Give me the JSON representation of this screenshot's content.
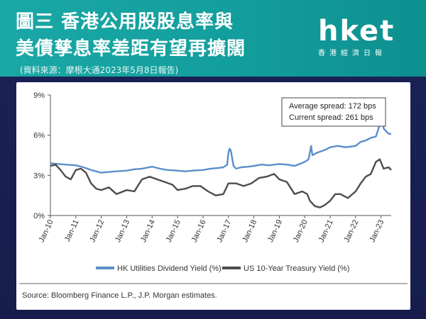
{
  "header": {
    "title_line1": "圖三 香港公用股股息率與",
    "title_line2": "美債孳息率差距有望再擴闊",
    "subtitle": "(資料來源：摩根大通2023年5月8日報告)"
  },
  "logo": {
    "word": "hket",
    "sub": "香港經濟日報"
  },
  "chart_data": {
    "type": "line",
    "xlabel": "",
    "ylabel": "",
    "ylim": [
      0,
      9
    ],
    "y_ticks": [
      0,
      3,
      6,
      9
    ],
    "y_tick_labels": [
      "0%",
      "3%",
      "6%",
      "9%"
    ],
    "x_ticks": [
      "Jan-10",
      "Jan-11",
      "Jan-12",
      "Jan-13",
      "Jan-14",
      "Jan-15",
      "Jan-16",
      "Jan-17",
      "Jan-18",
      "Jan-19",
      "Jan-20",
      "Jan-21",
      "Jan-22",
      "Jan-23"
    ],
    "x_range": [
      2010.0,
      2023.4
    ],
    "grid": false,
    "legend_position": "bottom",
    "annotations": [
      "Average spread: 172 bps",
      "Current spread: 261 bps"
    ],
    "source": "Source: Bloomberg Finance L.P., J.P. Morgan estimates.",
    "colors": {
      "hk": "#5b8fca",
      "us": "#4d4d4d"
    },
    "series": [
      {
        "name": "HK Utilities Dividend Yield (%)",
        "x": [
          2010.0,
          2010.3,
          2010.6,
          2011.0,
          2011.3,
          2011.6,
          2012.0,
          2012.3,
          2012.6,
          2013.0,
          2013.3,
          2013.6,
          2014.0,
          2014.3,
          2014.6,
          2015.0,
          2015.3,
          2015.6,
          2016.0,
          2016.3,
          2016.6,
          2016.8,
          2016.95,
          2017.0,
          2017.05,
          2017.1,
          2017.2,
          2017.3,
          2017.5,
          2017.8,
          2018.0,
          2018.3,
          2018.6,
          2019.0,
          2019.3,
          2019.6,
          2020.0,
          2020.15,
          2020.25,
          2020.3,
          2020.5,
          2020.8,
          2021.0,
          2021.3,
          2021.6,
          2022.0,
          2022.2,
          2022.4,
          2022.6,
          2022.8,
          2022.95,
          2023.05,
          2023.1,
          2023.2,
          2023.3,
          2023.4
        ],
        "values": [
          3.9,
          3.85,
          3.8,
          3.75,
          3.6,
          3.4,
          3.2,
          3.25,
          3.3,
          3.35,
          3.45,
          3.5,
          3.65,
          3.5,
          3.4,
          3.35,
          3.3,
          3.35,
          3.4,
          3.5,
          3.55,
          3.6,
          3.8,
          4.7,
          5.0,
          4.8,
          3.7,
          3.5,
          3.6,
          3.65,
          3.7,
          3.8,
          3.75,
          3.85,
          3.8,
          3.7,
          4.0,
          4.2,
          5.2,
          4.5,
          4.7,
          4.9,
          5.1,
          5.2,
          5.1,
          5.2,
          5.5,
          5.6,
          5.8,
          5.9,
          6.8,
          7.8,
          6.5,
          6.3,
          6.1,
          6.1
        ]
      },
      {
        "name": "US 10-Year Treasury Yield (%)",
        "x": [
          2010.0,
          2010.2,
          2010.4,
          2010.6,
          2010.8,
          2011.0,
          2011.2,
          2011.4,
          2011.6,
          2011.8,
          2012.0,
          2012.3,
          2012.6,
          2013.0,
          2013.3,
          2013.6,
          2013.9,
          2014.2,
          2014.5,
          2014.8,
          2015.0,
          2015.3,
          2015.6,
          2015.9,
          2016.2,
          2016.5,
          2016.8,
          2017.0,
          2017.3,
          2017.6,
          2017.9,
          2018.2,
          2018.5,
          2018.8,
          2019.0,
          2019.3,
          2019.6,
          2019.9,
          2020.1,
          2020.2,
          2020.4,
          2020.6,
          2020.8,
          2021.0,
          2021.2,
          2021.4,
          2021.7,
          2022.0,
          2022.2,
          2022.4,
          2022.6,
          2022.8,
          2022.95,
          2023.1,
          2023.3,
          2023.4
        ],
        "values": [
          3.7,
          3.8,
          3.4,
          2.9,
          2.7,
          3.4,
          3.5,
          3.2,
          2.4,
          2.0,
          1.9,
          2.1,
          1.6,
          1.9,
          1.8,
          2.7,
          2.9,
          2.7,
          2.5,
          2.3,
          1.9,
          2.0,
          2.2,
          2.2,
          1.8,
          1.5,
          1.6,
          2.4,
          2.4,
          2.2,
          2.4,
          2.8,
          2.9,
          3.1,
          2.7,
          2.5,
          1.6,
          1.8,
          1.6,
          1.1,
          0.7,
          0.6,
          0.8,
          1.1,
          1.6,
          1.6,
          1.3,
          1.8,
          2.4,
          2.9,
          3.1,
          4.0,
          4.2,
          3.5,
          3.6,
          3.4
        ]
      }
    ]
  }
}
